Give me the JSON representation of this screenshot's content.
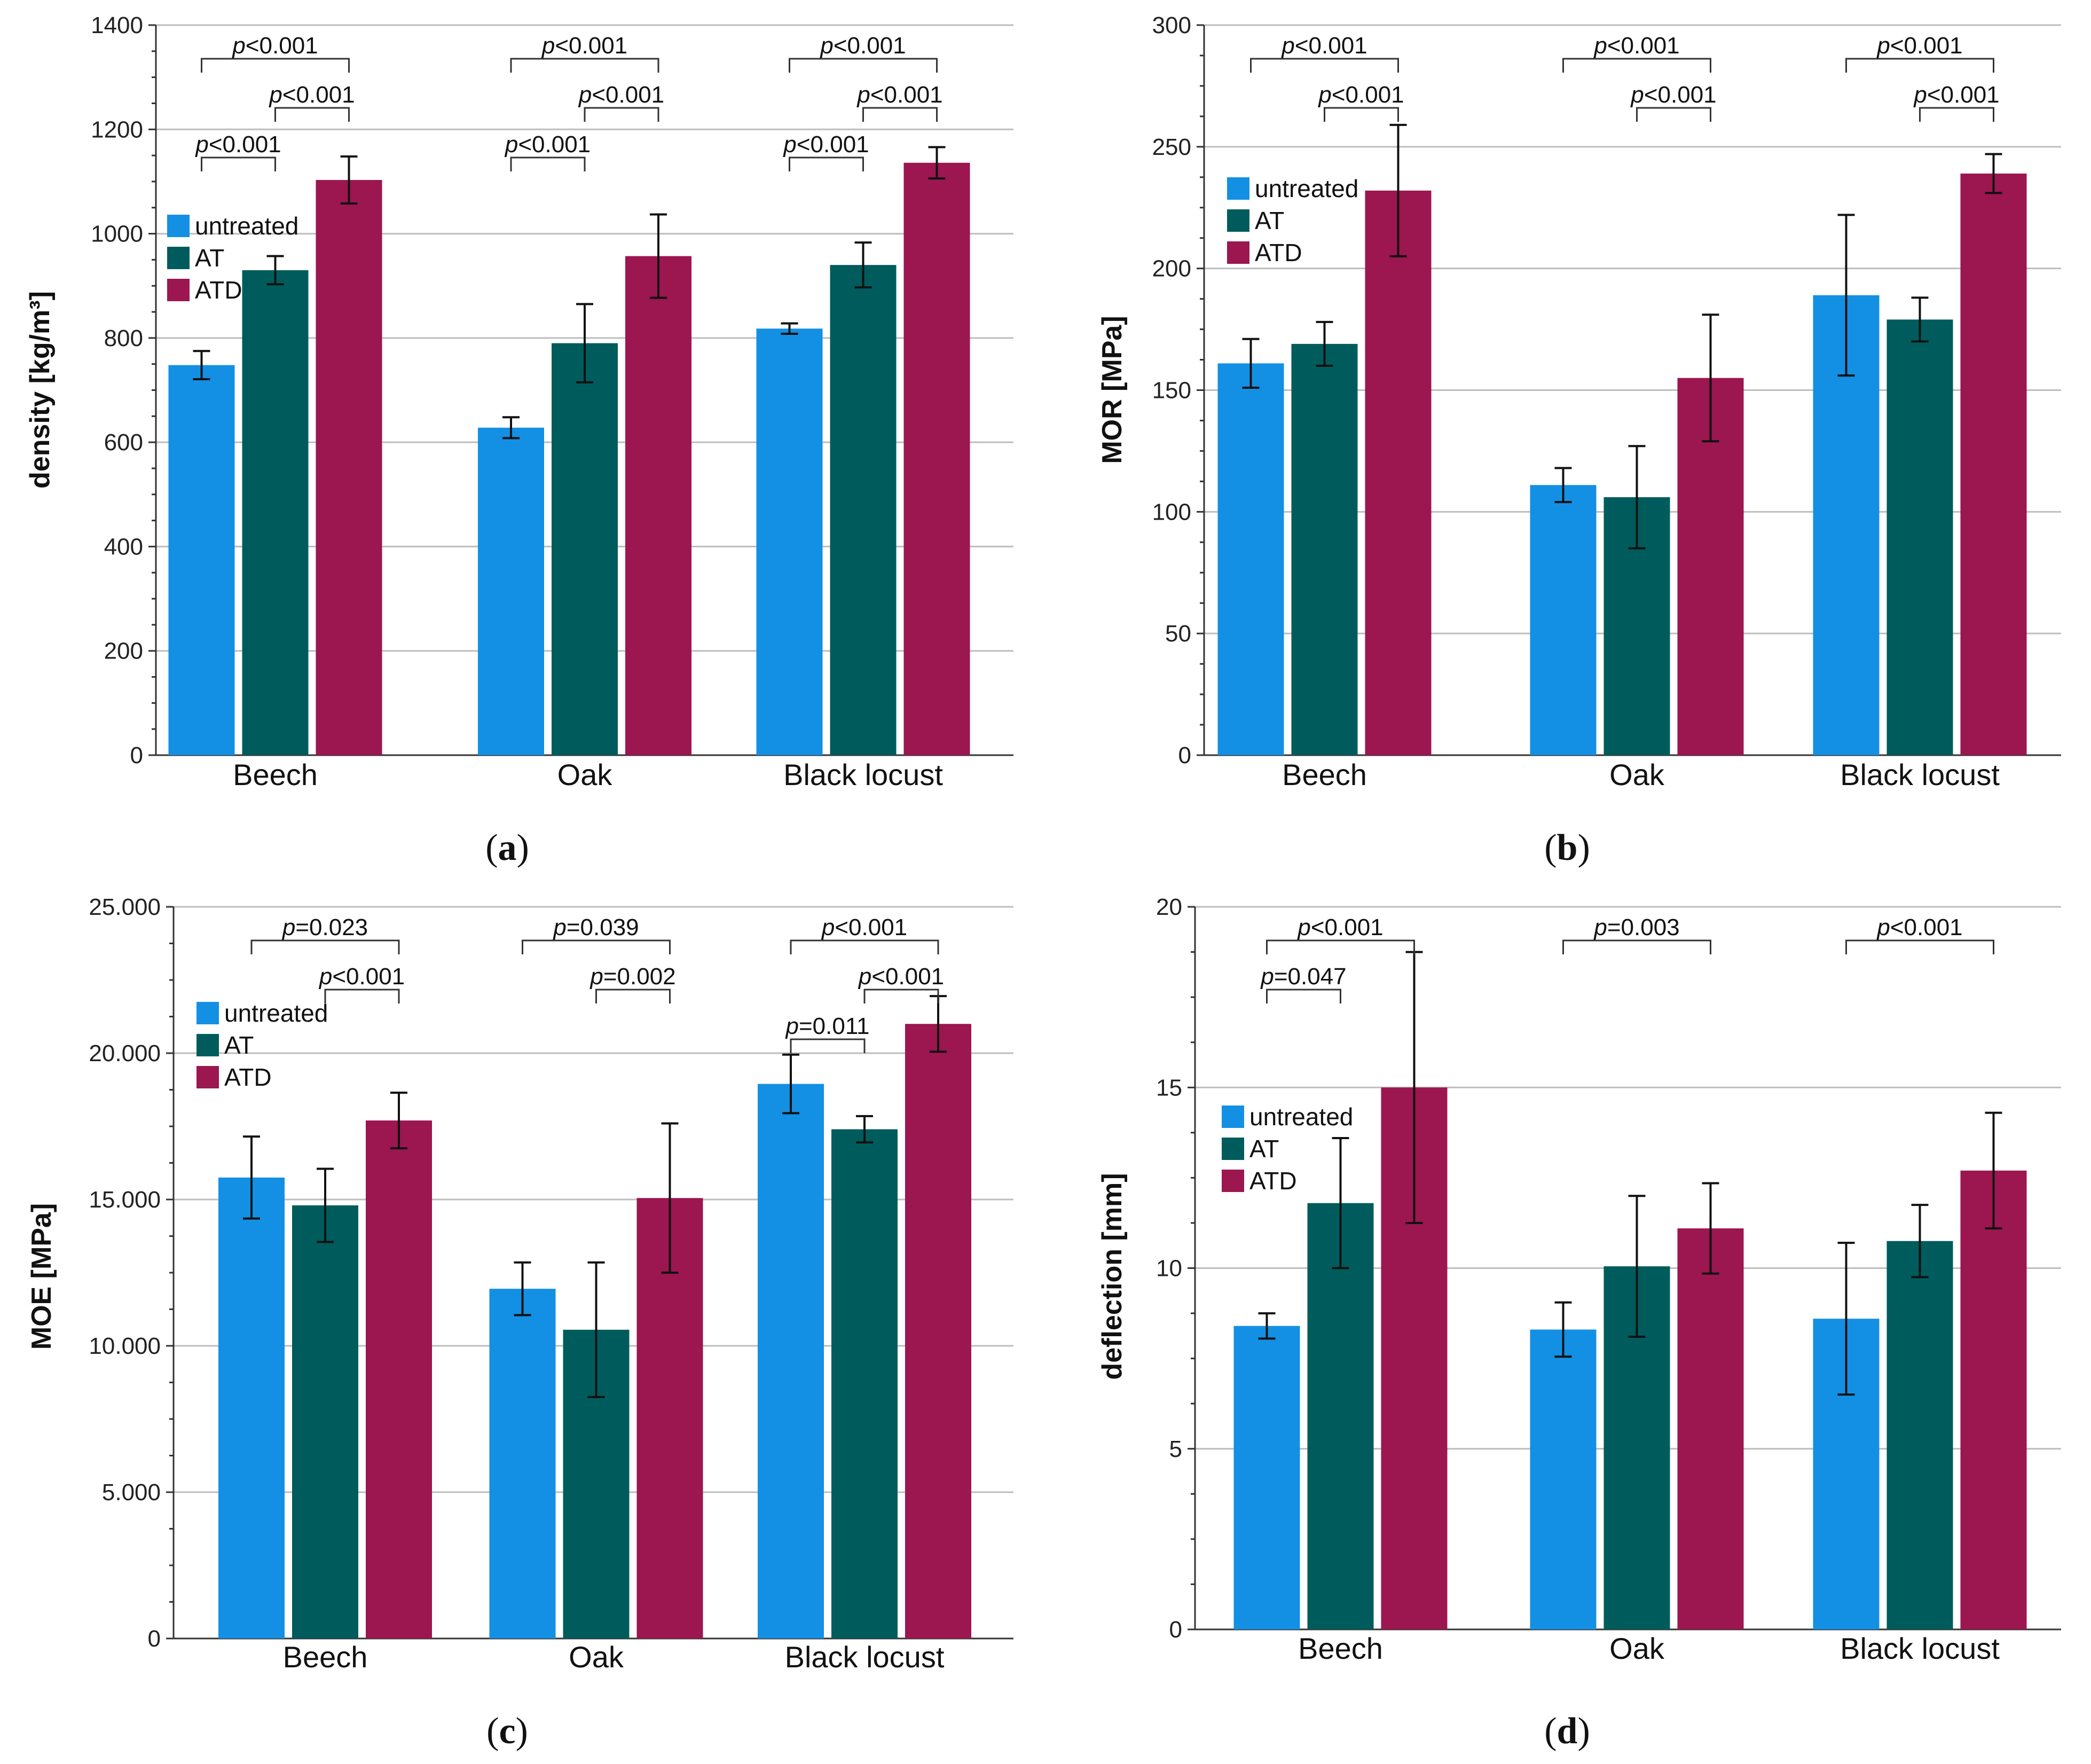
{
  "colors": {
    "untreated": "#1390e4",
    "AT": "#005c5c",
    "ATD": "#9c1650"
  },
  "legend": [
    "untreated",
    "AT",
    "ATD"
  ],
  "chart_data": [
    {
      "id": "a",
      "panel_label": "a",
      "type": "bar",
      "ylabel": "density [kg/m³]",
      "ylim": [
        0,
        1400
      ],
      "yticks": [
        0,
        200,
        400,
        600,
        800,
        1000,
        1200,
        1400
      ],
      "ytick_labels": [
        "0",
        "200",
        "400",
        "600",
        "800",
        "1000",
        "1200",
        "1400"
      ],
      "categories": [
        "Beech",
        "Oak",
        "Black locust"
      ],
      "series": [
        {
          "name": "untreated",
          "values": [
            748,
            628,
            818
          ],
          "errors": [
            27,
            20,
            10
          ]
        },
        {
          "name": "AT",
          "values": [
            930,
            790,
            940
          ],
          "errors": [
            27,
            75,
            43
          ]
        },
        {
          "name": "ATD",
          "values": [
            1103,
            957,
            1136
          ],
          "errors": [
            45,
            80,
            30
          ]
        }
      ],
      "legend_position": "upper-left",
      "significance": [
        {
          "group": 0,
          "from": 0,
          "to": 1,
          "level": 1,
          "label": "p<0.001"
        },
        {
          "group": 0,
          "from": 1,
          "to": 2,
          "level": 2,
          "label": "p<0.001"
        },
        {
          "group": 0,
          "from": 0,
          "to": 2,
          "level": 3,
          "label": "p<0.001"
        },
        {
          "group": 1,
          "from": 0,
          "to": 1,
          "level": 1,
          "label": "p<0.001"
        },
        {
          "group": 1,
          "from": 1,
          "to": 2,
          "level": 2,
          "label": "p<0.001"
        },
        {
          "group": 1,
          "from": 0,
          "to": 2,
          "level": 3,
          "label": "p<0.001"
        },
        {
          "group": 2,
          "from": 0,
          "to": 1,
          "level": 1,
          "label": "p<0.001"
        },
        {
          "group": 2,
          "from": 1,
          "to": 2,
          "level": 2,
          "label": "p<0.001"
        },
        {
          "group": 2,
          "from": 0,
          "to": 2,
          "level": 3,
          "label": "p<0.001"
        }
      ]
    },
    {
      "id": "b",
      "panel_label": "b",
      "type": "bar",
      "ylabel": "MOR   [MPa]",
      "ylim": [
        0,
        300
      ],
      "yticks": [
        0,
        50,
        100,
        150,
        200,
        250,
        300
      ],
      "ytick_labels": [
        "0",
        "50",
        "100",
        "150",
        "200",
        "250",
        "300"
      ],
      "categories": [
        "Beech",
        "Oak",
        "Black locust"
      ],
      "series": [
        {
          "name": "untreated",
          "values": [
            161,
            111,
            189
          ],
          "errors": [
            10,
            7,
            33
          ]
        },
        {
          "name": "AT",
          "values": [
            169,
            106,
            179
          ],
          "errors": [
            9,
            21,
            9
          ]
        },
        {
          "name": "ATD",
          "values": [
            232,
            155,
            239
          ],
          "errors": [
            27,
            26,
            8
          ]
        }
      ],
      "legend_position": "upper-left",
      "significance": [
        {
          "group": 0,
          "from": 1,
          "to": 2,
          "level": 2,
          "label": "p<0.001"
        },
        {
          "group": 0,
          "from": 0,
          "to": 2,
          "level": 3,
          "label": "p<0.001"
        },
        {
          "group": 1,
          "from": 1,
          "to": 2,
          "level": 2,
          "label": "p<0.001"
        },
        {
          "group": 1,
          "from": 0,
          "to": 2,
          "level": 3,
          "label": "p<0.001"
        },
        {
          "group": 2,
          "from": 1,
          "to": 2,
          "level": 2,
          "label": "p<0.001"
        },
        {
          "group": 2,
          "from": 0,
          "to": 2,
          "level": 3,
          "label": "p<0.001"
        }
      ]
    },
    {
      "id": "c",
      "panel_label": "c",
      "type": "bar",
      "ylabel": "MOE   [MPa]",
      "ylim": [
        0,
        25000
      ],
      "yticks": [
        0,
        5000,
        10000,
        15000,
        20000,
        25000
      ],
      "ytick_labels": [
        "0",
        "5.000",
        "10.000",
        "15.000",
        "20.000",
        "25.000"
      ],
      "categories": [
        "Beech",
        "Oak",
        "Black locust"
      ],
      "series": [
        {
          "name": "untreated",
          "values": [
            15750,
            11950,
            18950
          ],
          "errors": [
            1400,
            900,
            1000
          ]
        },
        {
          "name": "AT",
          "values": [
            14800,
            10550,
            17400
          ],
          "errors": [
            1250,
            2300,
            450
          ]
        },
        {
          "name": "ATD",
          "values": [
            17700,
            15050,
            21000
          ],
          "errors": [
            950,
            2550,
            950
          ]
        }
      ],
      "legend_position": "upper-left",
      "significance": [
        {
          "group": 0,
          "from": 1,
          "to": 2,
          "level": 2,
          "label": "p<0.001"
        },
        {
          "group": 0,
          "from": 0,
          "to": 2,
          "level": 3,
          "label": "p=0.023"
        },
        {
          "group": 1,
          "from": 1,
          "to": 2,
          "level": 2,
          "label": "p=0.002"
        },
        {
          "group": 1,
          "from": 0,
          "to": 2,
          "level": 3,
          "label": "p=0.039"
        },
        {
          "group": 2,
          "from": 0,
          "to": 1,
          "level": 1,
          "label": "p=0.011"
        },
        {
          "group": 2,
          "from": 1,
          "to": 2,
          "level": 2,
          "label": "p<0.001"
        },
        {
          "group": 2,
          "from": 0,
          "to": 2,
          "level": 3,
          "label": "p<0.001"
        }
      ]
    },
    {
      "id": "d",
      "panel_label": "d",
      "type": "bar",
      "ylabel": "deflection [mm]",
      "ylim": [
        0,
        20
      ],
      "yticks": [
        0,
        5,
        10,
        15,
        20
      ],
      "ytick_labels": [
        "0",
        "5",
        "10",
        "15",
        "20"
      ],
      "categories": [
        "Beech",
        "Oak",
        "Black locust"
      ],
      "series": [
        {
          "name": "untreated",
          "values": [
            8.4,
            8.3,
            8.6
          ],
          "errors": [
            0.35,
            0.75,
            2.1
          ]
        },
        {
          "name": "AT",
          "values": [
            11.8,
            10.05,
            10.75
          ],
          "errors": [
            1.8,
            1.95,
            1.0
          ]
        },
        {
          "name": "ATD",
          "values": [
            15.0,
            11.1,
            12.7
          ],
          "errors": [
            3.75,
            1.25,
            1.6
          ]
        }
      ],
      "legend_position": "upper-left",
      "significance": [
        {
          "group": 0,
          "from": 0,
          "to": 1,
          "level": 2,
          "label": "p=0.047"
        },
        {
          "group": 0,
          "from": 0,
          "to": 2,
          "level": 3,
          "label": "p<0.001"
        },
        {
          "group": 1,
          "from": 0,
          "to": 2,
          "level": 3,
          "label": "p=0.003"
        },
        {
          "group": 2,
          "from": 0,
          "to": 2,
          "level": 3,
          "label": "p<0.001"
        }
      ]
    }
  ]
}
